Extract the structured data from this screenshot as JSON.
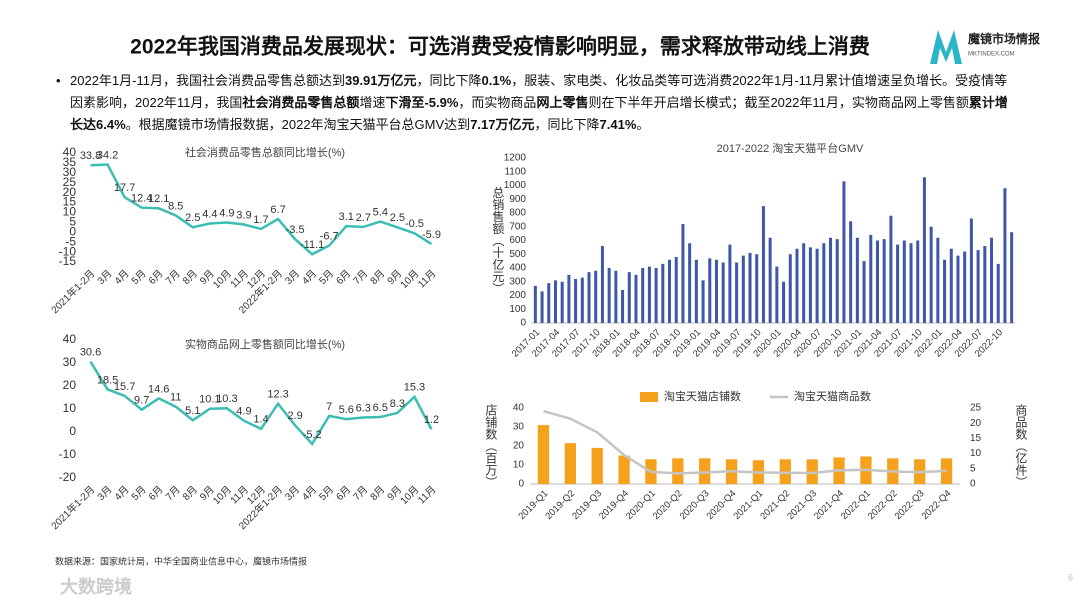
{
  "title": "2022年我国消费品发展现状：可选消费受疫情影响明显，需求释放带动线上消费",
  "logo": {
    "name": "魔镜市场情报",
    "url": "MKTINDEX.COM"
  },
  "bullet": {
    "segments": [
      {
        "text": "2022年1月-11月，我国社会消费品零售总额达到",
        "bold": false
      },
      {
        "text": "39.91万亿元",
        "bold": true
      },
      {
        "text": "，同比下降",
        "bold": false
      },
      {
        "text": "0.1%",
        "bold": true
      },
      {
        "text": "，服装、家电类、化妆品类等可选消费2022年1月-11月累计值增速呈负增长。受疫情等因素影响，2022年11月，我国",
        "bold": false
      },
      {
        "text": "社会消费品零售总额",
        "bold": true
      },
      {
        "text": "增速",
        "bold": false
      },
      {
        "text": "下滑至-5.9%",
        "bold": true
      },
      {
        "text": "，而实物商品",
        "bold": false
      },
      {
        "text": "网上零售",
        "bold": true
      },
      {
        "text": "则在下半年开启增长模式；截至2022年11月，实物商品网上零售额",
        "bold": false
      },
      {
        "text": "累计增长达6.4%",
        "bold": true
      },
      {
        "text": "。根据魔镜市场情报数据，2022年淘宝天猫平台总GMV达到",
        "bold": false
      },
      {
        "text": "7.17万亿元",
        "bold": true
      },
      {
        "text": "，同比下降",
        "bold": false
      },
      {
        "text": "7.41%",
        "bold": true
      },
      {
        "text": "。",
        "bold": false
      }
    ]
  },
  "source": "数据来源：国家统计局，中华全国商业信息中心，魔镜市场情报",
  "page_number": "6",
  "watermark": "大数跨境",
  "chart_data": [
    {
      "type": "line",
      "title": "社会消费品零售总额同比增长(%)",
      "color": "#3cbdb4",
      "data_labels": true,
      "categories": [
        "2021年1-2月",
        "3月",
        "4月",
        "5月",
        "6月",
        "7月",
        "8月",
        "9月",
        "10月",
        "11月",
        "12月",
        "2022年1-2月",
        "3月",
        "4月",
        "5月",
        "6月",
        "7月",
        "8月",
        "9月",
        "10月",
        "11月"
      ],
      "values": [
        33.8,
        34.2,
        17.7,
        12.4,
        12.1,
        8.5,
        2.5,
        4.4,
        4.9,
        3.9,
        1.7,
        6.7,
        -3.5,
        -11.1,
        -6.7,
        3.1,
        2.7,
        5.4,
        2.5,
        -0.5,
        -5.9
      ],
      "ylim": [
        -15,
        40
      ],
      "yticks": [
        -15,
        -10,
        -5,
        0,
        5,
        10,
        15,
        20,
        25,
        30,
        35,
        40
      ],
      "grid": false
    },
    {
      "type": "line",
      "title": "实物商品网上零售额同比增长(%)",
      "color": "#3cbdb4",
      "data_labels": true,
      "categories": [
        "2021年1-2月",
        "3月",
        "4月",
        "5月",
        "6月",
        "7月",
        "8月",
        "9月",
        "10月",
        "11月",
        "12月",
        "2022年1-2月",
        "3月",
        "4月",
        "5月",
        "6月",
        "7月",
        "8月",
        "9月",
        "10月",
        "11月"
      ],
      "values": [
        30.6,
        18.5,
        15.7,
        9.7,
        14.6,
        11,
        5.1,
        10.1,
        10.3,
        4.9,
        1.4,
        12.3,
        2.9,
        -5.2,
        7,
        5.6,
        6.3,
        6.5,
        8.3,
        15.3,
        1.2
      ],
      "ylim": [
        -20,
        40
      ],
      "yticks": [
        -20,
        -10,
        0,
        10,
        20,
        30,
        40
      ],
      "grid": false
    },
    {
      "type": "bar",
      "title": "2017-2022 淘宝天猫平台GMV",
      "y_label": "总销售额（十亿元）",
      "color": "#3f57a8",
      "categories": [
        "2017-01",
        null,
        null,
        "2017-04",
        null,
        null,
        "2017-07",
        null,
        null,
        "2017-10",
        null,
        null,
        "2018-01",
        null,
        null,
        "2018-04",
        null,
        null,
        "2018-07",
        null,
        null,
        "2018-10",
        null,
        null,
        "2019-01",
        null,
        null,
        "2019-04",
        null,
        null,
        "2019-07",
        null,
        null,
        "2019-10",
        null,
        null,
        "2020-01",
        null,
        null,
        "2020-04",
        null,
        null,
        "2020-07",
        null,
        null,
        "2020-10",
        null,
        null,
        "2021-01",
        null,
        null,
        "2021-04",
        null,
        null,
        "2021-07",
        null,
        null,
        "2021-10",
        null,
        null,
        "2022-01",
        null,
        null,
        "2022-04",
        null,
        null,
        "2022-07",
        null,
        null,
        "2022-10",
        null,
        null
      ],
      "values": [
        270,
        230,
        290,
        310,
        300,
        350,
        320,
        330,
        370,
        380,
        560,
        400,
        380,
        240,
        370,
        350,
        400,
        410,
        400,
        430,
        460,
        480,
        720,
        580,
        460,
        310,
        470,
        460,
        440,
        570,
        440,
        490,
        510,
        500,
        850,
        620,
        410,
        300,
        500,
        540,
        580,
        550,
        540,
        580,
        620,
        610,
        1030,
        740,
        620,
        450,
        640,
        600,
        610,
        780,
        570,
        600,
        580,
        600,
        1060,
        700,
        620,
        460,
        540,
        490,
        520,
        760,
        530,
        560,
        620,
        430,
        980,
        660
      ],
      "ylim": [
        0,
        1200
      ],
      "yticks": [
        0,
        100,
        200,
        300,
        400,
        500,
        600,
        700,
        800,
        900,
        1000,
        1100,
        1200
      ],
      "grid": false
    },
    {
      "type": "combo",
      "y_label": "店铺数（百万）",
      "y2_label": "商品数（亿件）",
      "legend": "top",
      "categories": [
        "2019-Q1",
        "2019-Q2",
        "2019-Q3",
        "2019-Q4",
        "2020-Q1",
        "2020-Q2",
        "2020-Q3",
        "2020-Q4",
        "2021-Q1",
        "2021-Q2",
        "2021-Q3",
        "2021-Q4",
        "2022-Q1",
        "2022-Q2",
        "2022-Q3",
        "2022-Q4"
      ],
      "series": [
        {
          "name": "淘宝天猫店铺数",
          "type": "bar",
          "color": "#f5a11c",
          "values": [
            31,
            21.5,
            19,
            15,
            13,
            13.5,
            13.5,
            13,
            12.5,
            13,
            13,
            14,
            14.5,
            13.5,
            13,
            13.5
          ]
        },
        {
          "name": "淘宝天猫商品数",
          "type": "line",
          "axis": "y2",
          "color": "#c4c4c4",
          "values": [
            24,
            21.5,
            17,
            9.5,
            4,
            3.5,
            3.8,
            4.2,
            3.8,
            3.7,
            3.6,
            4.5,
            4.7,
            4.1,
            3.9,
            4.3
          ]
        }
      ],
      "ylim": [
        0,
        40
      ],
      "yticks": [
        0,
        10,
        20,
        30,
        40
      ],
      "y2lim": [
        0,
        25
      ],
      "y2ticks": [
        0,
        5,
        10,
        15,
        20,
        25
      ],
      "grid": false
    }
  ]
}
